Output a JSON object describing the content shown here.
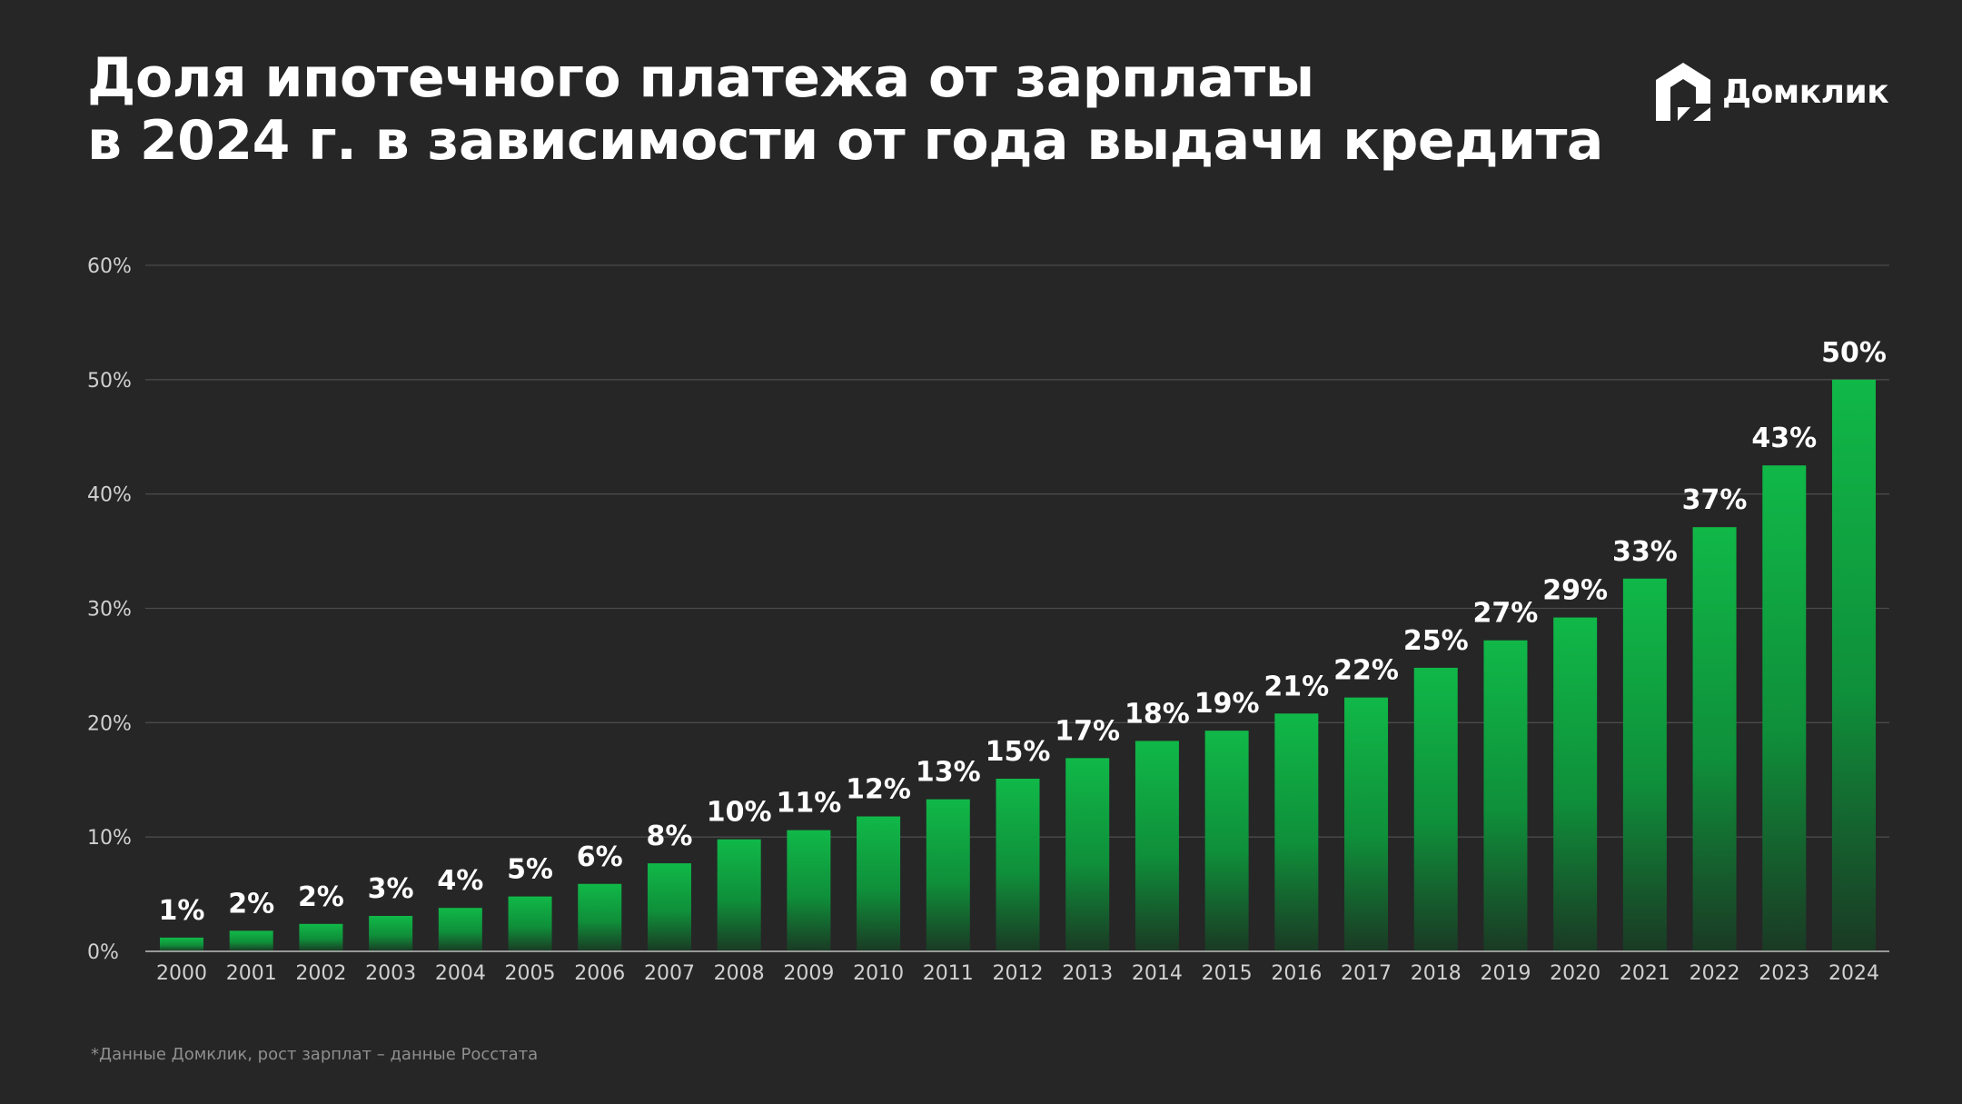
{
  "title": {
    "line1": "Доля ипотечного платежа от зарплаты",
    "line2": "в 2024 г. в зависимости от года выдачи кредита"
  },
  "brand": {
    "name": "Домклик",
    "icon": "domclick-house-icon"
  },
  "footnote": "*Данные Домклик, рост зарплат – данные Росстата",
  "colors": {
    "background": "#262626",
    "bar_top": "#10b848",
    "bar_bottom": "#1a3a24",
    "gridline": "#4a4a4a",
    "axis_text": "#d0d0d0",
    "value_label": "#ffffff"
  },
  "chart_data": {
    "type": "bar",
    "categories": [
      "2000",
      "2001",
      "2002",
      "2003",
      "2004",
      "2005",
      "2006",
      "2007",
      "2008",
      "2009",
      "2010",
      "2011",
      "2012",
      "2013",
      "2014",
      "2015",
      "2016",
      "2017",
      "2018",
      "2019",
      "2020",
      "2021",
      "2022",
      "2023",
      "2024"
    ],
    "values": [
      1.2,
      1.8,
      2.4,
      3.1,
      3.8,
      4.8,
      5.9,
      7.7,
      9.8,
      10.6,
      11.8,
      13.3,
      15.1,
      16.9,
      18.4,
      19.3,
      20.8,
      22.2,
      24.8,
      27.2,
      29.2,
      32.6,
      37.1,
      42.5,
      50.0
    ],
    "data_labels": [
      "1%",
      "2%",
      "2%",
      "3%",
      "4%",
      "5%",
      "6%",
      "8%",
      "10%",
      "11%",
      "12%",
      "13%",
      "15%",
      "17%",
      "18%",
      "19%",
      "21%",
      "22%",
      "25%",
      "27%",
      "29%",
      "33%",
      "37%",
      "43%",
      "50%"
    ],
    "yticks": [
      "0%",
      "10%",
      "20%",
      "30%",
      "40%",
      "50%",
      "60%"
    ],
    "ytick_values": [
      0,
      10,
      20,
      30,
      40,
      50,
      60
    ],
    "ylim": [
      0,
      60
    ],
    "xlabel": "",
    "ylabel": "",
    "grid": true,
    "legend": "none"
  }
}
